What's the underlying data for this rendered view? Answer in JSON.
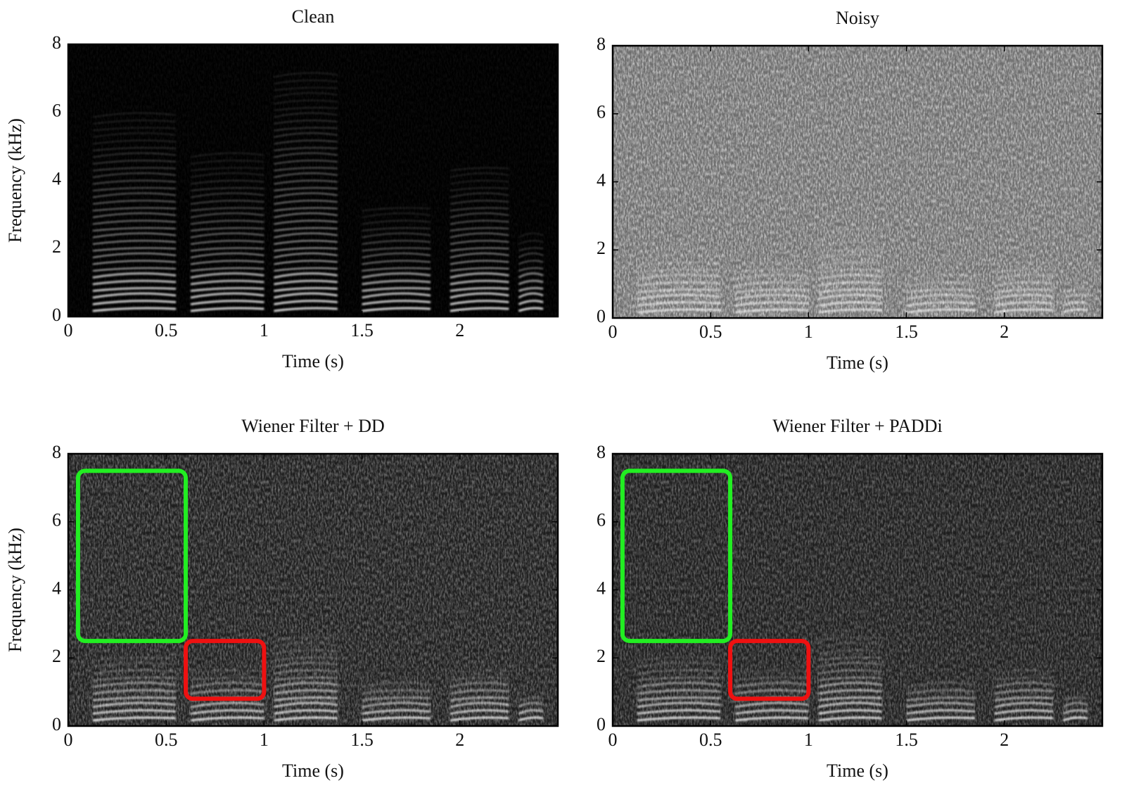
{
  "chart_data": [
    {
      "type": "spectrogram",
      "title": "Clean",
      "x_label": "Time (s)",
      "y_label": "Frequency (kHz)",
      "colormap": "gray",
      "xlim": [
        0,
        2.5
      ],
      "ylim": [
        0,
        8
      ],
      "xticks": [
        0,
        0.5,
        1,
        1.5,
        2
      ],
      "yticks": [
        0,
        2,
        4,
        6,
        8
      ]
    },
    {
      "type": "spectrogram",
      "title": "Noisy",
      "x_label": "Time (s)",
      "colormap": "gray",
      "xlim": [
        0,
        2.5
      ],
      "ylim": [
        0,
        8
      ],
      "xticks": [
        0,
        0.5,
        1,
        1.5,
        2
      ],
      "yticks": [
        0,
        2,
        4,
        6,
        8
      ]
    },
    {
      "type": "spectrogram",
      "title": "Wiener Filter + DD",
      "x_label": "Time (s)",
      "y_label": "Frequency (kHz)",
      "colormap": "gray",
      "xlim": [
        0,
        2.5
      ],
      "ylim": [
        0,
        8
      ],
      "xticks": [
        0,
        0.5,
        1,
        1.5,
        2
      ],
      "yticks": [
        0,
        2,
        4,
        6,
        8
      ],
      "highlights": [
        {
          "x": [
            0.05,
            0.6
          ],
          "y": [
            2.5,
            7.5
          ],
          "color": "#22ee22"
        },
        {
          "x": [
            0.6,
            1.0
          ],
          "y": [
            0.8,
            2.5
          ],
          "color": "#ee1111"
        }
      ]
    },
    {
      "type": "spectrogram",
      "title": "Wiener Filter + PADDi",
      "x_label": "Time (s)",
      "colormap": "gray",
      "xlim": [
        0,
        2.5
      ],
      "ylim": [
        0,
        8
      ],
      "xticks": [
        0,
        0.5,
        1,
        1.5,
        2
      ],
      "yticks": [
        0,
        2,
        4,
        6,
        8
      ],
      "highlights": [
        {
          "x": [
            0.05,
            0.6
          ],
          "y": [
            2.5,
            7.5
          ],
          "color": "#22ee22"
        },
        {
          "x": [
            0.6,
            1.0
          ],
          "y": [
            0.8,
            2.5
          ],
          "color": "#ee1111"
        }
      ]
    }
  ]
}
